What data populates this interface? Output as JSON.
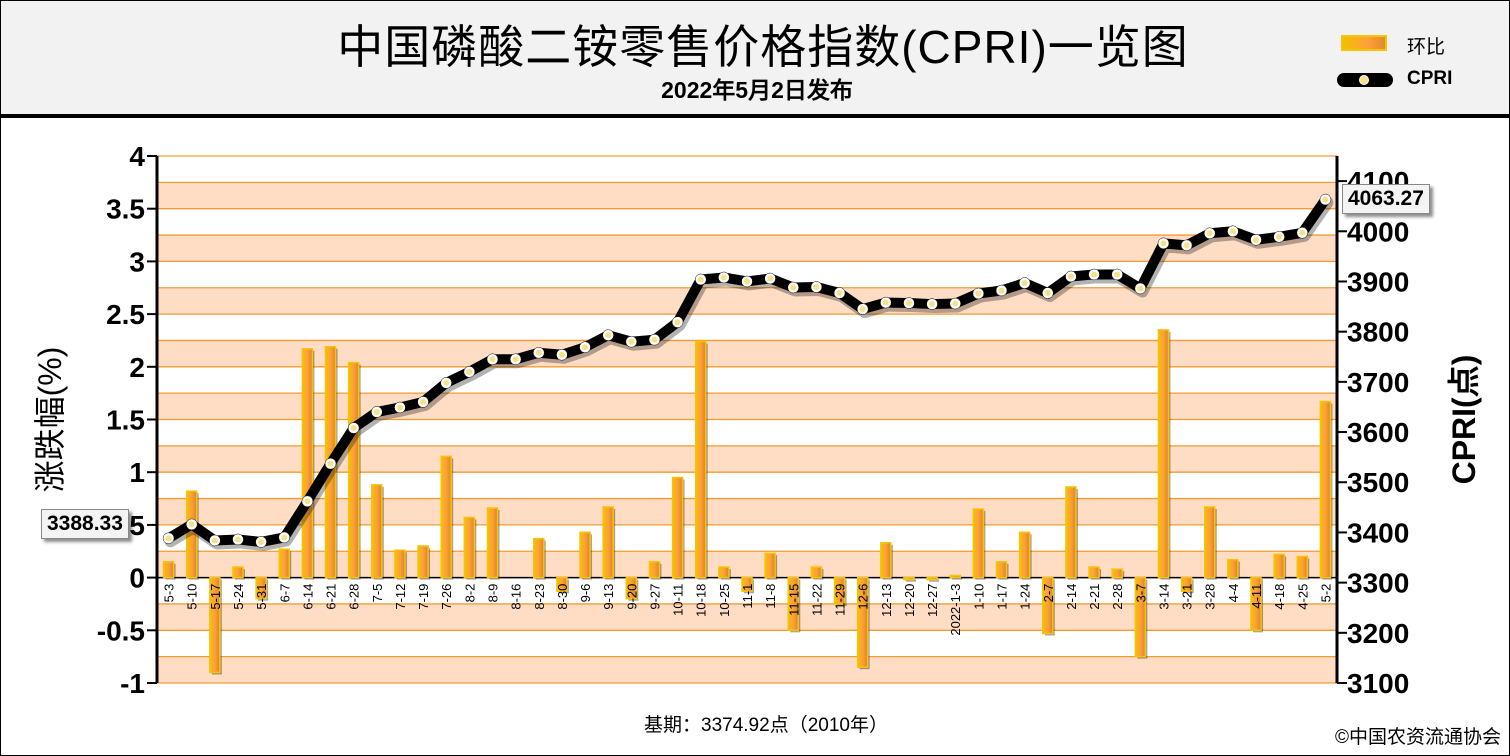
{
  "header": {
    "title": "中国磷酸二铵零售价格指数(CPRI)一览图",
    "subtitle": "2022年5月2日发布"
  },
  "legend": {
    "bar_label": "环比",
    "line_label": "CPRI"
  },
  "footer": {
    "base_period": "基期：3374.92点（2010年）",
    "copyright": "©中国农资流通协会"
  },
  "callouts": {
    "start": "3388.33",
    "end": "4063.27"
  },
  "colors": {
    "bar_fill": "#ff9f3a",
    "bar_edge": "#f6c400",
    "line": "#000000",
    "dot": "#f8e08a",
    "band_a": "#ffdcc4",
    "band_b": "#ffffff",
    "gridline": "#f39c33"
  },
  "chart_data": {
    "type": "bar",
    "title": "中国磷酸二铵零售价格指数(CPRI)一览图",
    "subtitle": "2022年5月2日发布",
    "ylabel_left": "涨跌幅(%)",
    "ylabel_right": "CPRI(点)",
    "ylim_left": [
      -1,
      4
    ],
    "ylim_right": [
      3100,
      4150
    ],
    "yticks_left": [
      "-1",
      "-0.5",
      "0",
      "0.5",
      "1",
      "1.5",
      "2",
      "2.5",
      "3",
      "3.5",
      "4"
    ],
    "yticks_right": [
      "3100",
      "3200",
      "3300",
      "3400",
      "3500",
      "3600",
      "3700",
      "3800",
      "3900",
      "4000",
      "4100"
    ],
    "categories": [
      "5-3",
      "5-10",
      "5-17",
      "5-24",
      "5-31",
      "6-7",
      "6-14",
      "6-21",
      "6-28",
      "7-5",
      "7-12",
      "7-19",
      "7-26",
      "8-2",
      "8-9",
      "8-16",
      "8-23",
      "8-30",
      "9-6",
      "9-13",
      "9-20",
      "9-27",
      "10-11",
      "10-18",
      "10-25",
      "11-1",
      "11-8",
      "11-15",
      "11-22",
      "11-29",
      "12-6",
      "12-13",
      "12-20",
      "12-27",
      "2022-1-3",
      "1-10",
      "1-17",
      "1-24",
      "2-7",
      "2-14",
      "2-21",
      "2-28",
      "3-7",
      "3-14",
      "3-21",
      "3-28",
      "4-4",
      "4-11",
      "4-18",
      "4-25",
      "5-2"
    ],
    "series": [
      {
        "name": "环比",
        "type": "bar",
        "axis": "left",
        "values": [
          0.15,
          0.82,
          -0.9,
          0.1,
          -0.2,
          0.27,
          2.17,
          2.19,
          2.04,
          0.88,
          0.26,
          0.3,
          1.15,
          0.57,
          0.66,
          0.0,
          0.37,
          -0.13,
          0.43,
          0.67,
          -0.2,
          0.15,
          0.95,
          2.24,
          0.1,
          -0.13,
          0.23,
          -0.5,
          0.1,
          -0.25,
          -0.85,
          0.33,
          -0.02,
          -0.02,
          0.02,
          0.65,
          0.15,
          0.43,
          -0.53,
          0.86,
          0.1,
          0.08,
          -0.75,
          2.35,
          -0.13,
          0.67,
          0.17,
          -0.5,
          0.22,
          0.2,
          1.67
        ]
      },
      {
        "name": "CPRI",
        "type": "line",
        "axis": "right",
        "values": [
          3388.33,
          3416,
          3384,
          3386,
          3381,
          3390,
          3462,
          3537,
          3608,
          3640,
          3649,
          3660,
          3698,
          3720,
          3745,
          3745,
          3758,
          3754,
          3769,
          3793,
          3780,
          3784,
          3819,
          3904,
          3908,
          3900,
          3906,
          3888,
          3889,
          3877,
          3845,
          3858,
          3857,
          3855,
          3856,
          3876,
          3882,
          3897,
          3877,
          3910,
          3914,
          3914,
          3886,
          3976,
          3972,
          3996,
          4000,
          3983,
          3989,
          3997,
          4063.27
        ]
      }
    ],
    "grid": true,
    "legend_position": "top-right"
  }
}
